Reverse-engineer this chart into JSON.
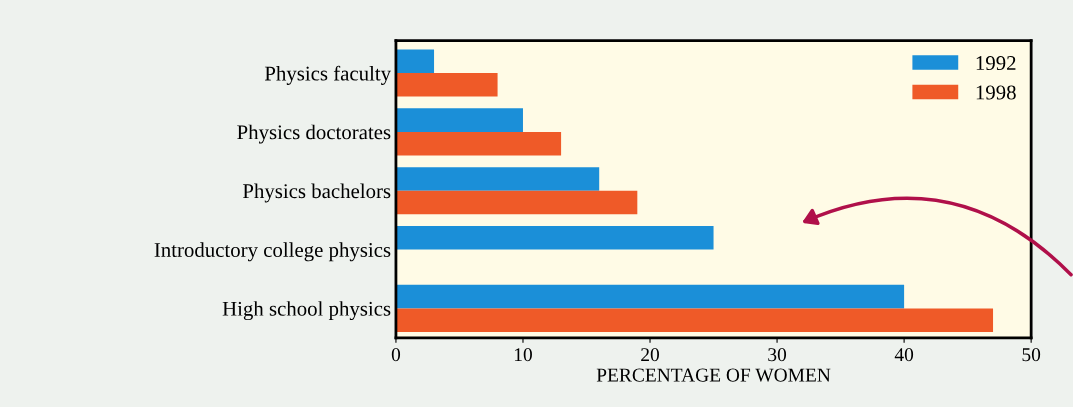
{
  "chart_data": {
    "type": "bar",
    "orientation": "horizontal",
    "categories": [
      "Physics faculty",
      "Physics doctorates",
      "Physics bachelors",
      "Introductory college physics",
      "High school physics"
    ],
    "series": [
      {
        "name": "1992",
        "color": "#1b8fd8",
        "values": [
          3,
          10,
          16,
          25,
          40
        ]
      },
      {
        "name": "1998",
        "color": "#ef5a28",
        "values": [
          8,
          13,
          19,
          null,
          47
        ]
      }
    ],
    "xlabel": "PERCENTAGE OF WOMEN",
    "xlim": [
      0,
      50
    ],
    "xticks": [
      0,
      10,
      20,
      30,
      40,
      50
    ],
    "legend": "top right",
    "grid": false
  }
}
